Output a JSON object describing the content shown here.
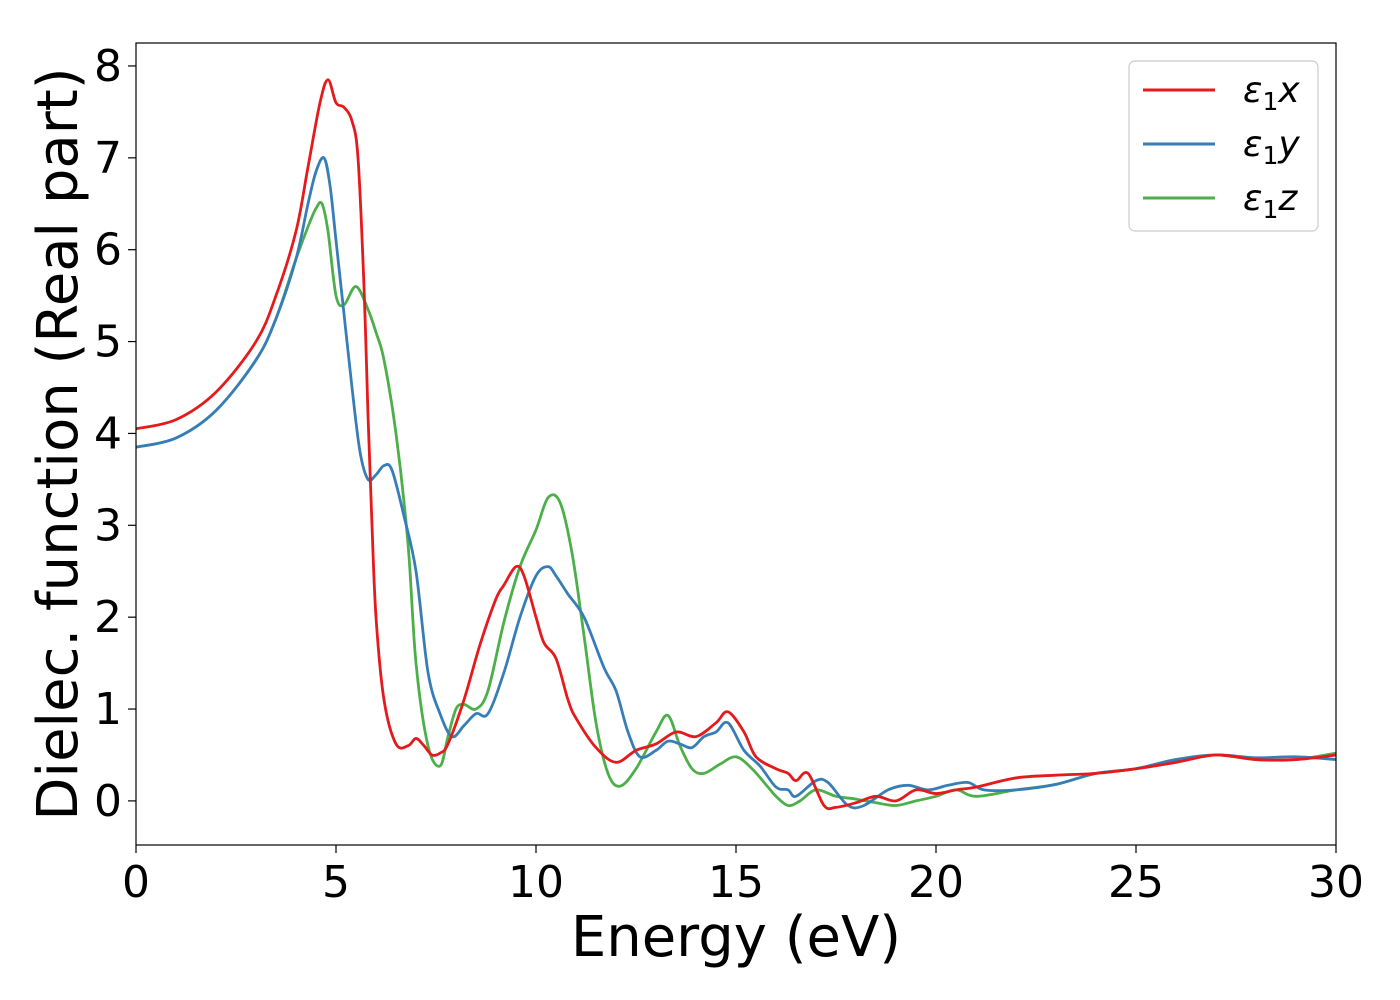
{
  "chart_data": {
    "type": "line",
    "xlabel": "Energy (eV)",
    "ylabel": "Dielec. function (Real part)",
    "xlim": [
      0,
      30
    ],
    "ylim": [
      -0.48,
      8.25
    ],
    "xticks": [
      0,
      5,
      10,
      15,
      20,
      25,
      30
    ],
    "yticks": [
      0,
      1,
      2,
      3,
      4,
      5,
      6,
      7,
      8
    ],
    "grid": false,
    "legend_position": "top-right",
    "series": [
      {
        "name": "ε1x",
        "legend": {
          "base": "ε",
          "sub": "1",
          "var": "x"
        },
        "color": "#e41a1c",
        "x": [
          0,
          1,
          2,
          3,
          3.5,
          4,
          4.3,
          4.6,
          4.8,
          5.0,
          5.2,
          5.4,
          5.55,
          5.7,
          5.8,
          5.9,
          6.0,
          6.2,
          6.5,
          6.8,
          7.0,
          7.2,
          7.4,
          7.6,
          7.8,
          8.2,
          8.6,
          9.0,
          9.2,
          9.5,
          9.7,
          10.0,
          10.2,
          10.5,
          10.8,
          11.0,
          11.5,
          12.0,
          12.5,
          13.0,
          13.5,
          14.0,
          14.5,
          14.8,
          15.2,
          15.5,
          16.0,
          16.3,
          16.5,
          16.8,
          17.2,
          17.5,
          18.0,
          18.5,
          19.0,
          19.5,
          20.0,
          20.5,
          21.0,
          22.0,
          23.0,
          24.0,
          25.0,
          26.0,
          27.0,
          28.0,
          29.0,
          30.0
        ],
        "y": [
          4.05,
          4.15,
          4.45,
          5.0,
          5.5,
          6.2,
          6.9,
          7.6,
          7.85,
          7.6,
          7.55,
          7.4,
          7.0,
          5.6,
          4.2,
          3.0,
          2.0,
          1.1,
          0.62,
          0.6,
          0.68,
          0.6,
          0.5,
          0.52,
          0.62,
          1.1,
          1.7,
          2.2,
          2.35,
          2.55,
          2.45,
          2.0,
          1.72,
          1.55,
          1.1,
          0.9,
          0.58,
          0.42,
          0.55,
          0.62,
          0.75,
          0.7,
          0.85,
          0.97,
          0.75,
          0.48,
          0.35,
          0.3,
          0.22,
          0.3,
          -0.05,
          -0.07,
          -0.02,
          0.05,
          0.0,
          0.12,
          0.08,
          0.12,
          0.15,
          0.25,
          0.28,
          0.3,
          0.35,
          0.42,
          0.5,
          0.45,
          0.45,
          0.5
        ]
      },
      {
        "name": "ε1y",
        "legend": {
          "base": "ε",
          "sub": "1",
          "var": "y"
        },
        "color": "#377eb8",
        "x": [
          0,
          1,
          2,
          3,
          3.5,
          4,
          4.3,
          4.5,
          4.7,
          4.85,
          5.0,
          5.2,
          5.4,
          5.6,
          5.8,
          6.0,
          6.2,
          6.4,
          6.7,
          7.0,
          7.3,
          7.6,
          7.9,
          8.2,
          8.5,
          8.8,
          9.2,
          9.6,
          10.0,
          10.3,
          10.5,
          10.8,
          11.2,
          11.7,
          12.0,
          12.3,
          12.6,
          13.0,
          13.3,
          13.6,
          13.9,
          14.2,
          14.5,
          14.8,
          15.2,
          15.6,
          16.0,
          16.3,
          16.5,
          17.0,
          17.3,
          17.8,
          18.2,
          18.8,
          19.3,
          19.8,
          20.3,
          20.8,
          21.2,
          22.0,
          23.0,
          24.0,
          25.0,
          26.0,
          27.0,
          28.0,
          29.0,
          30.0
        ],
        "y": [
          3.85,
          3.95,
          4.25,
          4.8,
          5.25,
          5.9,
          6.5,
          6.85,
          7.0,
          6.7,
          6.1,
          5.3,
          4.5,
          3.8,
          3.5,
          3.55,
          3.65,
          3.6,
          3.1,
          2.5,
          1.4,
          0.95,
          0.7,
          0.82,
          0.95,
          0.95,
          1.4,
          2.0,
          2.45,
          2.55,
          2.45,
          2.25,
          2.0,
          1.45,
          1.2,
          0.75,
          0.48,
          0.55,
          0.65,
          0.62,
          0.58,
          0.7,
          0.75,
          0.85,
          0.55,
          0.38,
          0.15,
          0.12,
          0.05,
          0.22,
          0.2,
          -0.05,
          -0.05,
          0.12,
          0.17,
          0.12,
          0.17,
          0.2,
          0.12,
          0.12,
          0.18,
          0.3,
          0.35,
          0.45,
          0.5,
          0.47,
          0.48,
          0.45
        ]
      },
      {
        "name": "ε1z",
        "legend": {
          "base": "ε",
          "sub": "1",
          "var": "z"
        },
        "color": "#4daf4a",
        "x": [
          0,
          1,
          2,
          3,
          3.5,
          4,
          4.3,
          4.5,
          4.65,
          4.8,
          5.0,
          5.2,
          5.5,
          5.8,
          6.0,
          6.2,
          6.5,
          6.8,
          7.0,
          7.3,
          7.6,
          7.8,
          8.0,
          8.2,
          8.5,
          8.8,
          9.2,
          9.6,
          10.0,
          10.3,
          10.6,
          10.9,
          11.2,
          11.5,
          11.8,
          12.1,
          12.5,
          13.0,
          13.3,
          13.6,
          13.9,
          14.2,
          14.6,
          15.0,
          15.4,
          15.8,
          16.0,
          16.3,
          16.6,
          17.0,
          17.5,
          18.0,
          18.5,
          19.0,
          19.5,
          20.0,
          20.5,
          21.0,
          22.0,
          23.0,
          24.0,
          25.0,
          26.0,
          27.0,
          28.0,
          29.0,
          30.0
        ],
        "y": [
          3.85,
          3.95,
          4.25,
          4.8,
          5.25,
          5.9,
          6.25,
          6.45,
          6.5,
          6.2,
          5.5,
          5.4,
          5.6,
          5.35,
          5.1,
          4.8,
          4.0,
          2.8,
          1.5,
          0.6,
          0.38,
          0.7,
          1.0,
          1.05,
          1.0,
          1.2,
          1.95,
          2.55,
          2.95,
          3.3,
          3.25,
          2.7,
          1.8,
          0.85,
          0.3,
          0.16,
          0.35,
          0.75,
          0.93,
          0.6,
          0.35,
          0.3,
          0.4,
          0.48,
          0.35,
          0.15,
          0.05,
          -0.05,
          0.0,
          0.12,
          0.05,
          0.02,
          -0.02,
          -0.05,
          0.0,
          0.05,
          0.12,
          0.05,
          0.12,
          0.18,
          0.3,
          0.35,
          0.45,
          0.5,
          0.45,
          0.45,
          0.52
        ]
      }
    ]
  }
}
